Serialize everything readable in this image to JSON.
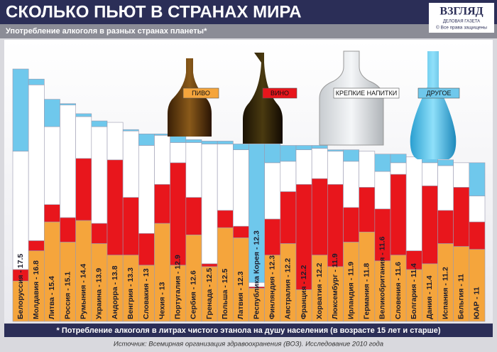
{
  "logo": {
    "name": "ВЗГЛЯД",
    "tagline": "ДЕЛОВАЯ ГАЗЕТА",
    "rights": "© Все права защищены"
  },
  "chart_data": {
    "type": "bar",
    "stacked": true,
    "title": "СКОЛЬКО ПЬЮТ В СТРАНАХ МИРА",
    "subtitle": "Употребление алкоголя в разных странах планеты*",
    "footnote": "* Потребление алкоголя в литрах чистого этанола на душу населения (в возрасте 15 лет и старше)",
    "source": "Источник: Всемирная организация здравоохранения (ВОЗ). Исследование 2010 года",
    "categories": [
      "Белоруссия - 17.5",
      "Молдавия - 16.8",
      "Литва - 15.4",
      "Россия - 15.1",
      "Румыния - 14.4",
      "Украина - 13.9",
      "Андорра - 13.8",
      "Венгрия - 13.3",
      "Словакия - 13",
      "Чехия - 13",
      "Португалия - 12.9",
      "Сербия - 12.6",
      "Гренада - 12.5",
      "Польша - 12.5",
      "Латвия - 12.3",
      "Республика Корея - 12.3",
      "Финляндия - 12.3",
      "Австралия - 12.2",
      "Франция - 12.2",
      "Хорватия - 12.2",
      "Люксембург - 11.9",
      "Ирландия - 11.9",
      "Германия - 11.8",
      "Великобритания - 11.6",
      "Словения - 11.6",
      "Болгария - 11.4",
      "Дания - 11.4",
      "Испания - 11.2",
      "Бельгия - 11",
      "ЮАР - 11"
    ],
    "series": [
      {
        "name": "ПИВО",
        "color": "#f5a53c",
        "values": [
          2.8,
          4.9,
          6.9,
          5.5,
          7.0,
          5.4,
          4.6,
          4.6,
          3.9,
          6.8,
          3.9,
          6.0,
          3.8,
          6.5,
          5.8,
          2.3,
          4.6,
          5.4,
          2.2,
          4.6,
          3.8,
          5.5,
          6.2,
          4.2,
          4.6,
          3.6,
          4.0,
          5.4,
          5.2,
          5.0
        ]
      },
      {
        "name": "ВИНО",
        "color": "#e8161c",
        "values": [
          0.8,
          0.7,
          1.2,
          1.7,
          4.3,
          1.4,
          6.6,
          4.0,
          2.2,
          2.7,
          7.1,
          2.6,
          0.2,
          1.2,
          0.8,
          0.1,
          2.5,
          3.6,
          7.3,
          5.3,
          5.7,
          2.4,
          3.1,
          3.6,
          5.6,
          1.3,
          5.4,
          2.3,
          4.1,
          1.9
        ]
      },
      {
        "name": "КРЕПКИЕ НАПИТКИ",
        "color": "#ffffff",
        "values": [
          8.2,
          10.8,
          5.4,
          7.8,
          2.9,
          6.7,
          2.6,
          4.6,
          6.1,
          3.4,
          1.4,
          3.8,
          8.3,
          4.6,
          5.3,
          0.3,
          3.9,
          2.1,
          2.4,
          2.1,
          2.3,
          3.2,
          2.5,
          2.6,
          0.8,
          6.5,
          1.6,
          3.1,
          1.7,
          1.8
        ]
      },
      {
        "name": "ДРУГОЕ",
        "color": "#6fc8ec",
        "values": [
          5.7,
          0.4,
          1.9,
          0.1,
          0.2,
          0.4,
          0,
          0.1,
          0.8,
          0.1,
          0.5,
          0.2,
          0.2,
          0.2,
          0.4,
          9.6,
          1.3,
          1.1,
          0.3,
          0.2,
          0.1,
          0.8,
          0,
          1.2,
          0.6,
          0,
          0.4,
          0.4,
          0,
          2.3
        ]
      }
    ]
  }
}
